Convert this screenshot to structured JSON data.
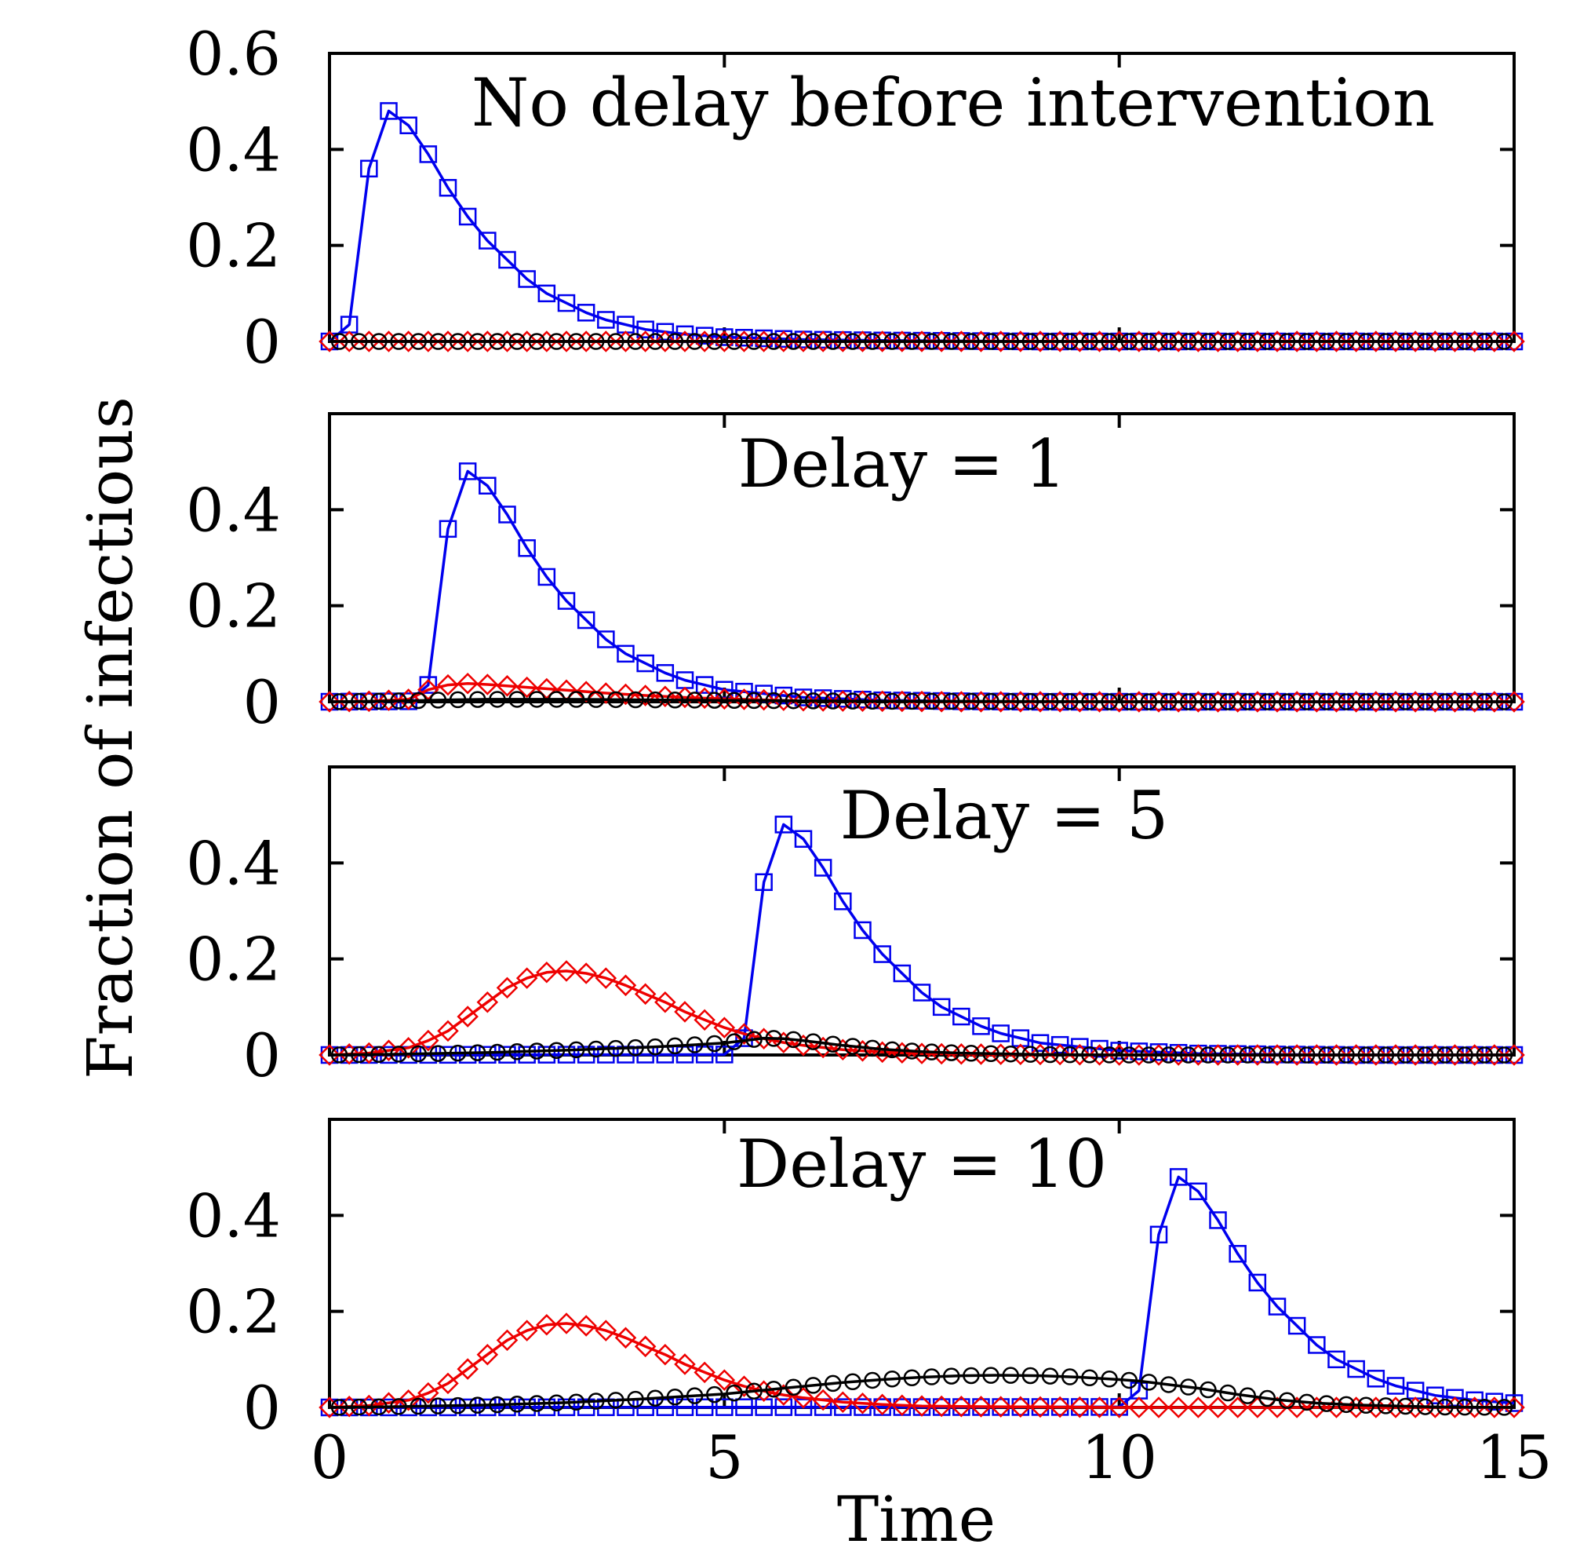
{
  "figure": {
    "xlabel": "Time",
    "ylabel": "Fraction of infectious",
    "colors": {
      "blue": "#0000ee",
      "red": "#ee0000",
      "black": "#000000"
    }
  },
  "chart_data": [
    {
      "type": "line",
      "annotation": "No delay before intervention",
      "delay": 0,
      "xlim": [
        0,
        15
      ],
      "ylim": [
        0,
        0.6
      ],
      "yticks": [
        0,
        0.2,
        0.4,
        0.6
      ],
      "ytick_labels": [
        "0",
        "0.2",
        "0.4",
        "0.6"
      ],
      "xticks": [
        0,
        5,
        10,
        15
      ],
      "xtick_labels": [],
      "series": [
        {
          "marker": "square",
          "color": "#0000ee",
          "x": [
            0,
            0.25,
            0.5,
            0.75,
            1,
            1.25,
            1.5,
            1.75,
            2,
            2.25,
            2.5,
            2.75,
            3,
            3.25,
            3.5,
            3.75,
            4,
            4.25,
            4.5,
            5,
            6,
            7,
            8,
            9,
            10,
            11,
            12,
            13,
            14,
            15
          ],
          "y": [
            0,
            0.035,
            0.36,
            0.48,
            0.45,
            0.39,
            0.32,
            0.26,
            0.21,
            0.17,
            0.13,
            0.1,
            0.08,
            0.06,
            0.045,
            0.035,
            0.025,
            0.02,
            0.015,
            0.009,
            0.004,
            0.002,
            0.001,
            0,
            0,
            0,
            0,
            0,
            0,
            0
          ]
        },
        {
          "marker": "diamond",
          "color": "#ee0000",
          "x": [
            0,
            15
          ],
          "y": [
            0,
            0
          ]
        },
        {
          "marker": "circle",
          "color": "#000000",
          "x": [
            0,
            15
          ],
          "y": [
            0,
            0
          ]
        }
      ]
    },
    {
      "type": "line",
      "annotation": "Delay = 1",
      "delay": 1,
      "xlim": [
        0,
        15
      ],
      "ylim": [
        0,
        0.6
      ],
      "yticks": [
        0,
        0.2,
        0.4
      ],
      "ytick_labels": [
        "0",
        "0.2",
        "0.4"
      ],
      "xticks": [
        0,
        5,
        10,
        15
      ],
      "xtick_labels": [],
      "series": [
        {
          "marker": "square",
          "color": "#0000ee",
          "x": [
            0,
            1,
            1.25,
            1.5,
            1.75,
            2,
            2.25,
            2.5,
            2.75,
            3,
            3.25,
            3.5,
            3.75,
            4,
            4.25,
            4.5,
            5,
            6,
            7,
            8,
            9,
            10,
            11,
            12,
            13,
            14,
            15
          ],
          "y": [
            0,
            0.001,
            0.035,
            0.36,
            0.48,
            0.45,
            0.39,
            0.32,
            0.26,
            0.21,
            0.17,
            0.13,
            0.1,
            0.08,
            0.06,
            0.045,
            0.025,
            0.009,
            0.003,
            0.001,
            0,
            0,
            0,
            0,
            0,
            0,
            0
          ]
        },
        {
          "marker": "diamond",
          "color": "#ee0000",
          "x": [
            0,
            0.5,
            1,
            1.25,
            1.5,
            1.75,
            2,
            2.5,
            3,
            3.5,
            4,
            4.5,
            5,
            5.5,
            6,
            7,
            8,
            9,
            10,
            15
          ],
          "y": [
            0,
            0.001,
            0.005,
            0.025,
            0.035,
            0.038,
            0.036,
            0.03,
            0.024,
            0.018,
            0.013,
            0.009,
            0.006,
            0.004,
            0.002,
            0.001,
            0,
            0,
            0,
            0
          ]
        },
        {
          "marker": "circle",
          "color": "#000000",
          "x": [
            0,
            1,
            1.5,
            2,
            3,
            4,
            5,
            6,
            7,
            8,
            10,
            15
          ],
          "y": [
            0,
            0.002,
            0.004,
            0.005,
            0.005,
            0.004,
            0.003,
            0.002,
            0.001,
            0.001,
            0,
            0
          ]
        }
      ]
    },
    {
      "type": "line",
      "annotation": "Delay = 5",
      "delay": 5,
      "xlim": [
        0,
        15
      ],
      "ylim": [
        0,
        0.6
      ],
      "yticks": [
        0,
        0.2,
        0.4
      ],
      "ytick_labels": [
        "0",
        "0.2",
        "0.4"
      ],
      "xticks": [
        0,
        5,
        10,
        15
      ],
      "xtick_labels": [],
      "series": [
        {
          "marker": "square",
          "color": "#0000ee",
          "x": [
            0,
            5,
            5.25,
            5.5,
            5.75,
            6,
            6.25,
            6.5,
            6.75,
            7,
            7.25,
            7.5,
            7.75,
            8,
            8.25,
            8.5,
            9,
            10,
            11,
            12,
            13,
            14,
            15
          ],
          "y": [
            0,
            0.001,
            0.035,
            0.36,
            0.48,
            0.45,
            0.39,
            0.32,
            0.26,
            0.21,
            0.17,
            0.13,
            0.1,
            0.08,
            0.06,
            0.045,
            0.025,
            0.009,
            0.003,
            0.001,
            0,
            0,
            0
          ]
        },
        {
          "marker": "diamond",
          "color": "#ee0000",
          "x": [
            0,
            0.5,
            1,
            1.25,
            1.5,
            1.75,
            2,
            2.25,
            2.5,
            2.75,
            3,
            3.25,
            3.5,
            3.75,
            4,
            4.25,
            4.5,
            4.75,
            5,
            5.25,
            5.5,
            5.75,
            6,
            6.5,
            7,
            7.5,
            8,
            9,
            10,
            11,
            12,
            15
          ],
          "y": [
            0,
            0.004,
            0.015,
            0.03,
            0.05,
            0.08,
            0.11,
            0.14,
            0.16,
            0.172,
            0.175,
            0.17,
            0.16,
            0.145,
            0.127,
            0.11,
            0.09,
            0.073,
            0.057,
            0.044,
            0.034,
            0.026,
            0.02,
            0.011,
            0.006,
            0.003,
            0.002,
            0.001,
            0,
            0,
            0,
            0
          ]
        },
        {
          "marker": "circle",
          "color": "#000000",
          "x": [
            0,
            1,
            2,
            3,
            4,
            4.5,
            5,
            5.25,
            5.5,
            5.75,
            6,
            6.25,
            6.5,
            7,
            7.5,
            8,
            9,
            10,
            11,
            12,
            15
          ],
          "y": [
            0,
            0.002,
            0.005,
            0.01,
            0.016,
            0.02,
            0.025,
            0.03,
            0.035,
            0.034,
            0.03,
            0.025,
            0.02,
            0.012,
            0.007,
            0.004,
            0.001,
            0,
            0,
            0,
            0
          ]
        }
      ]
    },
    {
      "type": "line",
      "annotation": "Delay = 10",
      "delay": 10,
      "xlim": [
        0,
        15
      ],
      "ylim": [
        0,
        0.6
      ],
      "yticks": [
        0,
        0.2,
        0.4
      ],
      "ytick_labels": [
        "0",
        "0.2",
        "0.4"
      ],
      "xticks": [
        0,
        5,
        10,
        15
      ],
      "xtick_labels": [
        "0",
        "5",
        "10",
        "15"
      ],
      "series": [
        {
          "marker": "square",
          "color": "#0000ee",
          "x": [
            0,
            10,
            10.25,
            10.5,
            10.75,
            11,
            11.25,
            11.5,
            11.75,
            12,
            12.25,
            12.5,
            12.75,
            13,
            13.25,
            13.5,
            13.75,
            14,
            14.25,
            14.5,
            14.75,
            15
          ],
          "y": [
            0,
            0.001,
            0.035,
            0.36,
            0.48,
            0.45,
            0.39,
            0.32,
            0.26,
            0.21,
            0.17,
            0.13,
            0.1,
            0.08,
            0.06,
            0.045,
            0.035,
            0.025,
            0.02,
            0.015,
            0.012,
            0.009
          ]
        },
        {
          "marker": "diamond",
          "color": "#ee0000",
          "x": [
            0,
            0.5,
            1,
            1.25,
            1.5,
            1.75,
            2,
            2.25,
            2.5,
            2.75,
            3,
            3.25,
            3.5,
            3.75,
            4,
            4.25,
            4.5,
            4.75,
            5,
            5.25,
            5.5,
            5.75,
            6,
            6.5,
            7,
            7.5,
            8,
            9,
            10,
            11,
            12,
            15
          ],
          "y": [
            0,
            0.004,
            0.015,
            0.03,
            0.05,
            0.08,
            0.11,
            0.14,
            0.16,
            0.172,
            0.175,
            0.17,
            0.16,
            0.145,
            0.127,
            0.11,
            0.09,
            0.073,
            0.057,
            0.044,
            0.034,
            0.026,
            0.02,
            0.011,
            0.006,
            0.003,
            0.002,
            0.001,
            0,
            0,
            0,
            0
          ]
        },
        {
          "marker": "circle",
          "color": "#000000",
          "x": [
            0,
            1,
            2,
            3,
            4,
            5,
            5.5,
            6,
            6.5,
            7,
            7.5,
            8,
            8.5,
            9,
            9.5,
            10,
            10.25,
            10.5,
            10.75,
            11,
            11.5,
            12,
            12.5,
            13,
            14,
            15
          ],
          "y": [
            0,
            0.002,
            0.005,
            0.01,
            0.018,
            0.028,
            0.036,
            0.044,
            0.052,
            0.058,
            0.063,
            0.066,
            0.067,
            0.066,
            0.063,
            0.058,
            0.055,
            0.05,
            0.045,
            0.04,
            0.027,
            0.016,
            0.009,
            0.005,
            0.001,
            0
          ]
        }
      ]
    }
  ]
}
